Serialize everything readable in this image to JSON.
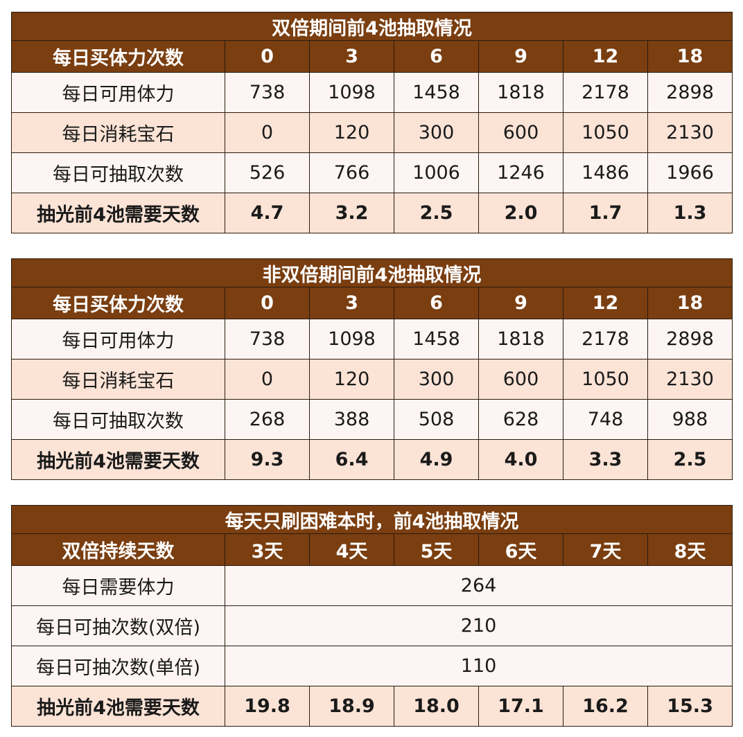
{
  "tables": [
    {
      "title": "双倍期间前4池抽取情况",
      "header": [
        "每日买体力次数",
        "0",
        "3",
        "6",
        "9",
        "12",
        "18"
      ],
      "rows": [
        [
          "每日可用体力",
          "738",
          "1098",
          "1458",
          "1818",
          "2178",
          "2898"
        ],
        [
          "每日消耗宝石",
          "0",
          "120",
          "300",
          "600",
          "1050",
          "2130"
        ],
        [
          "每日可抽取次数",
          "526",
          "766",
          "1006",
          "1246",
          "1486",
          "1966"
        ],
        [
          "抽光前4池需要天数",
          "4.7",
          "3.2",
          "2.5",
          "2.0",
          "1.7",
          "1.3"
        ]
      ]
    },
    {
      "title": "非双倍期间前4池抽取情况",
      "header": [
        "每日买体力次数",
        "0",
        "3",
        "6",
        "9",
        "12",
        "18"
      ],
      "rows": [
        [
          "每日可用体力",
          "738",
          "1098",
          "1458",
          "1818",
          "2178",
          "2898"
        ],
        [
          "每日消耗宝石",
          "0",
          "120",
          "300",
          "600",
          "1050",
          "2130"
        ],
        [
          "每日可抽取次数",
          "268",
          "388",
          "508",
          "628",
          "748",
          "988"
        ],
        [
          "抽光前4池需要天数",
          "9.3",
          "6.4",
          "4.9",
          "4.0",
          "3.3",
          "2.5"
        ]
      ]
    },
    {
      "title": "每天只刷困难本时，前4池抽取情况",
      "header": [
        "双倍持续天数",
        "3天",
        "4天",
        "5天",
        "6天",
        "7天",
        "8天"
      ],
      "rows": [
        [
          "每日需要体力",
          "264"
        ],
        [
          "每日可抽次数(双倍)",
          "210"
        ],
        [
          "每日可抽次数(单倍)",
          "110"
        ],
        [
          "抽光前4池需要天数",
          "19.8",
          "18.9",
          "18.0",
          "17.1",
          "16.2",
          "15.3"
        ]
      ]
    }
  ]
}
